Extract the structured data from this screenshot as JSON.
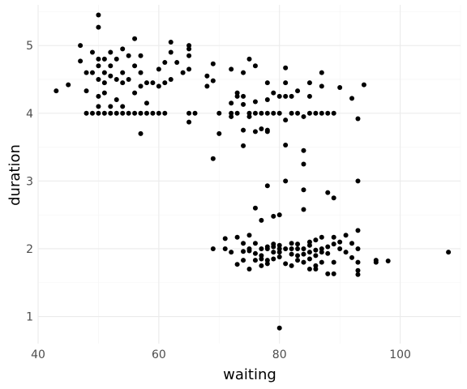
{
  "chart_data": {
    "type": "scatter",
    "title": "",
    "xlabel": "waiting",
    "ylabel": "duration",
    "xlim": [
      40,
      110
    ],
    "ylim": [
      0.6,
      5.6
    ],
    "x_ticks": [
      40,
      60,
      80,
      100
    ],
    "y_ticks": [
      1,
      2,
      3,
      4,
      5
    ],
    "grid": true,
    "legend": "none",
    "point_color": "#000000",
    "points": [
      [
        43,
        4.33
      ],
      [
        45,
        4.42
      ],
      [
        47,
        5.0
      ],
      [
        47,
        4.77
      ],
      [
        48,
        4.6
      ],
      [
        48,
        4.33
      ],
      [
        48,
        4.0
      ],
      [
        49,
        4.6
      ],
      [
        49,
        4.9
      ],
      [
        49,
        4.0
      ],
      [
        50,
        5.45
      ],
      [
        50,
        5.27
      ],
      [
        50,
        4.8
      ],
      [
        50,
        4.7
      ],
      [
        50,
        4.5
      ],
      [
        50,
        4.25
      ],
      [
        50,
        4.1
      ],
      [
        50,
        4.0
      ],
      [
        51,
        4.8
      ],
      [
        51,
        4.6
      ],
      [
        51,
        4.45
      ],
      [
        51,
        4.3
      ],
      [
        51,
        4.0
      ],
      [
        52,
        4.9
      ],
      [
        52,
        4.7
      ],
      [
        52,
        4.55
      ],
      [
        52,
        4.1
      ],
      [
        52,
        4.0
      ],
      [
        53,
        4.8
      ],
      [
        53,
        4.5
      ],
      [
        53,
        4.2
      ],
      [
        53,
        4.0
      ],
      [
        54,
        4.95
      ],
      [
        54,
        4.6
      ],
      [
        54,
        4.45
      ],
      [
        54,
        4.1
      ],
      [
        54,
        4.0
      ],
      [
        55,
        4.85
      ],
      [
        55,
        4.5
      ],
      [
        55,
        4.0
      ],
      [
        56,
        5.1
      ],
      [
        56,
        4.7
      ],
      [
        56,
        4.3
      ],
      [
        56,
        4.0
      ],
      [
        57,
        4.85
      ],
      [
        57,
        4.6
      ],
      [
        57,
        4.4
      ],
      [
        57,
        4.0
      ],
      [
        57,
        3.7
      ],
      [
        58,
        4.45
      ],
      [
        58,
        4.15
      ],
      [
        58,
        4.0
      ],
      [
        59,
        4.45
      ],
      [
        59,
        4.0
      ],
      [
        60,
        4.65
      ],
      [
        60,
        4.4
      ],
      [
        60,
        4.0
      ],
      [
        61,
        4.75
      ],
      [
        61,
        4.45
      ],
      [
        61,
        4.0
      ],
      [
        62,
        5.05
      ],
      [
        62,
        4.9
      ],
      [
        62,
        4.5
      ],
      [
        63,
        4.75
      ],
      [
        64,
        4.6
      ],
      [
        65,
        5.0
      ],
      [
        65,
        4.95
      ],
      [
        65,
        4.85
      ],
      [
        65,
        4.65
      ],
      [
        65,
        4.0
      ],
      [
        65,
        3.87
      ],
      [
        66,
        4.0
      ],
      [
        68,
        4.55
      ],
      [
        68,
        4.4
      ],
      [
        69,
        4.73
      ],
      [
        69,
        4.48
      ],
      [
        69,
        3.33
      ],
      [
        70,
        3.7
      ],
      [
        70,
        4.0
      ],
      [
        72,
        4.65
      ],
      [
        72,
        4.15
      ],
      [
        72,
        4.0
      ],
      [
        72,
        3.95
      ],
      [
        73,
        4.3
      ],
      [
        73,
        4.25
      ],
      [
        73,
        4.0
      ],
      [
        74,
        4.6
      ],
      [
        74,
        4.25
      ],
      [
        74,
        4.13
      ],
      [
        74,
        3.75
      ],
      [
        74,
        3.52
      ],
      [
        75,
        4.8
      ],
      [
        75,
        4.0
      ],
      [
        75,
        3.95
      ],
      [
        76,
        4.7
      ],
      [
        76,
        4.17
      ],
      [
        76,
        4.0
      ],
      [
        76,
        3.73
      ],
      [
        77,
        4.0
      ],
      [
        77,
        3.77
      ],
      [
        78,
        4.45
      ],
      [
        78,
        4.2
      ],
      [
        78,
        4.0
      ],
      [
        78,
        3.75
      ],
      [
        78,
        3.73
      ],
      [
        79,
        4.3
      ],
      [
        79,
        4.0
      ],
      [
        80,
        4.25
      ],
      [
        80,
        4.0
      ],
      [
        81,
        4.67
      ],
      [
        81,
        4.45
      ],
      [
        81,
        4.25
      ],
      [
        81,
        3.9
      ],
      [
        81,
        3.53
      ],
      [
        82,
        4.25
      ],
      [
        82,
        4.0
      ],
      [
        83,
        4.33
      ],
      [
        83,
        4.0
      ],
      [
        84,
        3.95
      ],
      [
        84,
        3.45
      ],
      [
        84,
        3.25
      ],
      [
        85,
        4.45
      ],
      [
        85,
        4.25
      ],
      [
        85,
        4.0
      ],
      [
        86,
        4.0
      ],
      [
        87,
        4.6
      ],
      [
        87,
        4.4
      ],
      [
        87,
        4.0
      ],
      [
        88,
        4.0
      ],
      [
        89,
        4.0
      ],
      [
        90,
        4.38
      ],
      [
        92,
        4.22
      ],
      [
        93,
        3.92
      ],
      [
        94,
        4.42
      ],
      [
        69,
        2.0
      ],
      [
        71,
        2.15
      ],
      [
        71,
        2.0
      ],
      [
        73,
        2.17
      ],
      [
        73,
        1.77
      ],
      [
        74,
        1.83
      ],
      [
        75,
        2.2
      ],
      [
        75,
        2.0
      ],
      [
        75,
        1.7
      ],
      [
        76,
        2.6
      ],
      [
        76,
        1.93
      ],
      [
        76,
        1.83
      ],
      [
        77,
        2.42
      ],
      [
        77,
        2.0
      ],
      [
        77,
        1.9
      ],
      [
        77,
        1.75
      ],
      [
        78,
        2.93
      ],
      [
        78,
        2.03
      ],
      [
        78,
        2.0
      ],
      [
        78,
        1.83
      ],
      [
        78,
        1.78
      ],
      [
        79,
        2.48
      ],
      [
        79,
        2.03
      ],
      [
        79,
        1.95
      ],
      [
        80,
        2.5
      ],
      [
        80,
        2.05
      ],
      [
        80,
        2.0
      ],
      [
        80,
        1.88
      ],
      [
        80,
        0.83
      ],
      [
        81,
        3.0
      ],
      [
        81,
        2.0
      ],
      [
        81,
        1.78
      ],
      [
        82,
        2.0
      ],
      [
        82,
        1.92
      ],
      [
        82,
        1.75
      ],
      [
        83,
        2.0
      ],
      [
        83,
        1.83
      ],
      [
        84,
        2.87
      ],
      [
        84,
        2.58
      ],
      [
        84,
        2.0
      ],
      [
        84,
        1.92
      ],
      [
        84,
        1.8
      ],
      [
        85,
        2.1
      ],
      [
        85,
        1.95
      ],
      [
        85,
        1.7
      ],
      [
        86,
        2.13
      ],
      [
        86,
        1.98
      ],
      [
        86,
        1.75
      ],
      [
        86,
        1.7
      ],
      [
        87,
        2.17
      ],
      [
        87,
        2.0
      ],
      [
        87,
        1.8
      ],
      [
        88,
        2.83
      ],
      [
        88,
        2.03
      ],
      [
        88,
        1.63
      ],
      [
        89,
        2.75
      ],
      [
        89,
        2.17
      ],
      [
        89,
        1.8
      ],
      [
        89,
        1.63
      ],
      [
        90,
        2.1
      ],
      [
        90,
        2.0
      ],
      [
        91,
        2.2
      ],
      [
        92,
        1.87
      ],
      [
        93,
        3.0
      ],
      [
        93,
        2.27
      ],
      [
        93,
        2.0
      ],
      [
        93,
        1.8
      ],
      [
        93,
        1.68
      ],
      [
        93,
        1.62
      ],
      [
        96,
        1.83
      ],
      [
        96,
        1.8
      ],
      [
        98,
        1.82
      ],
      [
        108,
        1.95
      ],
      [
        72,
        1.95
      ],
      [
        74,
        2.08
      ],
      [
        75,
        1.97
      ],
      [
        76,
        2.08
      ],
      [
        77,
        1.85
      ],
      [
        79,
        1.85
      ],
      [
        82,
        2.08
      ],
      [
        83,
        1.9
      ],
      [
        85,
        1.85
      ],
      [
        86,
        1.9
      ],
      [
        88,
        1.93
      ],
      [
        89,
        2.07
      ],
      [
        91,
        1.95
      ],
      [
        92,
        2.08
      ],
      [
        74,
        1.96
      ],
      [
        79,
        2.07
      ],
      [
        83,
        2.07
      ],
      [
        87,
        1.95
      ],
      [
        80,
        1.95
      ],
      [
        85,
        2.05
      ]
    ]
  }
}
